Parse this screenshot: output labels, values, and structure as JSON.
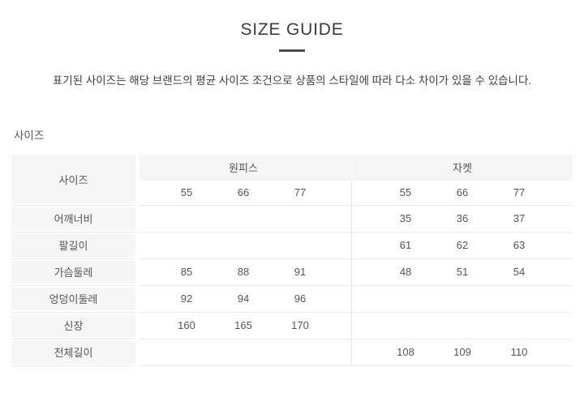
{
  "header": {
    "title": "SIZE GUIDE",
    "note": "표기된 사이즈는 해당 브랜드의 평균 사이즈 조건으로 상품의 스타일에 따라 다소 차이가 있을 수 있습니다."
  },
  "section": {
    "label": "사이즈"
  },
  "table": {
    "corner_label": "사이즈",
    "groups": [
      {
        "name": "원피스",
        "sizes": [
          "55",
          "66",
          "77"
        ]
      },
      {
        "name": "자켓",
        "sizes": [
          "55",
          "66",
          "77"
        ]
      }
    ],
    "rows": [
      {
        "label": "어깨너비",
        "values": [
          [
            "",
            "",
            ""
          ],
          [
            "35",
            "36",
            "37"
          ]
        ]
      },
      {
        "label": "팔길이",
        "values": [
          [
            "",
            "",
            ""
          ],
          [
            "61",
            "62",
            "63"
          ]
        ]
      },
      {
        "label": "가슴둘레",
        "values": [
          [
            "85",
            "88",
            "91"
          ],
          [
            "48",
            "51",
            "54"
          ]
        ]
      },
      {
        "label": "엉덩이둘레",
        "values": [
          [
            "92",
            "94",
            "96"
          ],
          [
            "",
            "",
            ""
          ]
        ]
      },
      {
        "label": "신장",
        "values": [
          [
            "160",
            "165",
            "170"
          ],
          [
            "",
            "",
            ""
          ]
        ]
      },
      {
        "label": "전체길이",
        "values": [
          [
            "",
            "",
            ""
          ],
          [
            "108",
            "109",
            "110"
          ]
        ]
      }
    ]
  },
  "theme": {
    "header_bg": "#f6f6f6",
    "line": "#e9e9e9",
    "divider": "#e7e7e7",
    "text": "#555555",
    "title": "#3b3b3b",
    "dash": "#4c4c4c",
    "note": "#3d3d3d"
  }
}
